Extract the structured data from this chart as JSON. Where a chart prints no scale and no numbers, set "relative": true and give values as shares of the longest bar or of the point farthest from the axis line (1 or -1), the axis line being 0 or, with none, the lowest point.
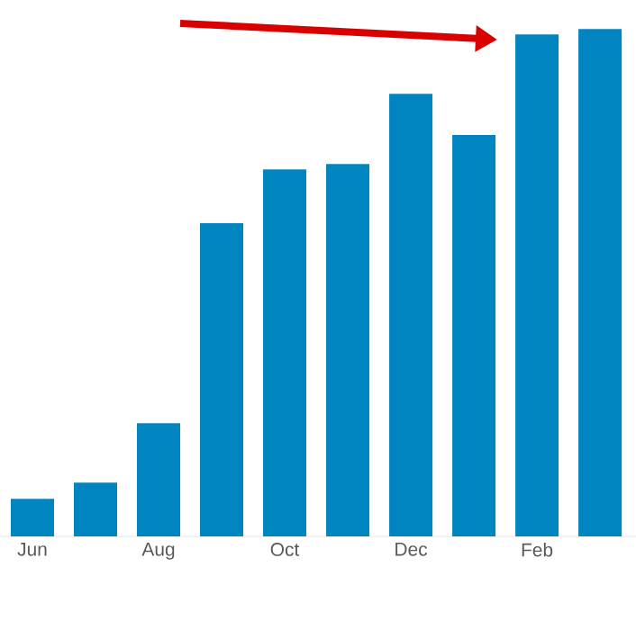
{
  "chart_data": {
    "type": "bar",
    "relative": true,
    "color": "#0085c0",
    "categories": [
      "Jun",
      null,
      "Aug",
      null,
      "Oct",
      null,
      "Dec",
      null,
      "Feb",
      null
    ],
    "values": [
      0.074,
      0.106,
      0.223,
      0.617,
      0.723,
      0.734,
      0.872,
      0.791,
      0.989,
      1
    ]
  }
}
